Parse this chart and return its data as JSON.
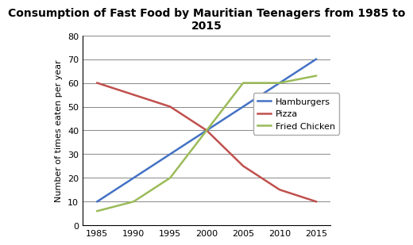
{
  "title": "Consumption of Fast Food by Mauritian Teenagers from 1985 to\n2015",
  "ylabel": "Number of times eaten per year",
  "years": [
    1985,
    1990,
    1995,
    2000,
    2005,
    2010,
    2015
  ],
  "hamburgers": [
    10,
    20,
    30,
    40,
    50,
    60,
    70
  ],
  "pizza": [
    60,
    55,
    50,
    40,
    25,
    15,
    10
  ],
  "fried_chicken": [
    6,
    10,
    20,
    40,
    60,
    60,
    63
  ],
  "hamburgers_color": "#4472C4",
  "pizza_color": "#C0504D",
  "fried_chicken_color": "#9BBB59",
  "ylim": [
    0,
    80
  ],
  "xlim": [
    1983,
    2017
  ],
  "yticks": [
    0,
    10,
    20,
    30,
    40,
    50,
    60,
    70,
    80
  ],
  "xticks": [
    1985,
    1990,
    1995,
    2000,
    2005,
    2010,
    2015
  ],
  "legend_labels": [
    "Hamburgers",
    "Pizza",
    "Fried Chicken"
  ],
  "line_width": 1.8,
  "title_fontsize": 10,
  "axis_label_fontsize": 8,
  "tick_fontsize": 8,
  "legend_fontsize": 8,
  "background_color": "#FFFFFF",
  "grid_color": "#888888",
  "grid_linewidth": 0.7
}
